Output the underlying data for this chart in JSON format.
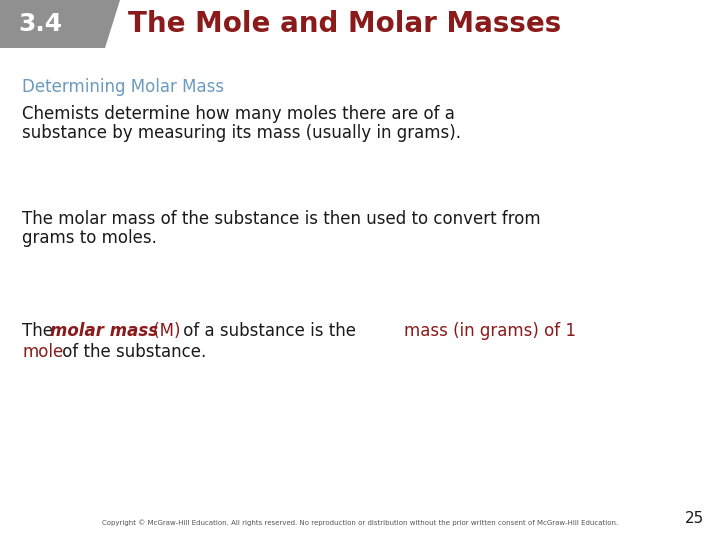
{
  "header_box_color": "#909090",
  "header_number": "3.4",
  "header_title": "The Mole and Molar Masses",
  "header_title_color": "#8B1A1A",
  "header_number_color": "#FFFFFF",
  "section_title": "Determining Molar Mass",
  "section_title_color": "#6A9BBF",
  "para1_line1": "Chemists determine how many moles there are of a",
  "para1_line2": "substance by measuring its mass (usually in grams).",
  "para2_line1": "The molar mass of the substance is then used to convert from",
  "para2_line2": "grams to moles.",
  "black_color": "#1a1a1a",
  "dark_red_color": "#8B1A1A",
  "footer_text": "Copyright © McGraw-Hill Education. All rights reserved. No reproduction or distribution without the prior written consent of McGraw-Hill Education.",
  "page_number": "25",
  "background_color": "#FFFFFF",
  "header_fs": 18,
  "title_fs": 20,
  "section_fs": 12,
  "body_fs": 12,
  "footer_fs": 5
}
